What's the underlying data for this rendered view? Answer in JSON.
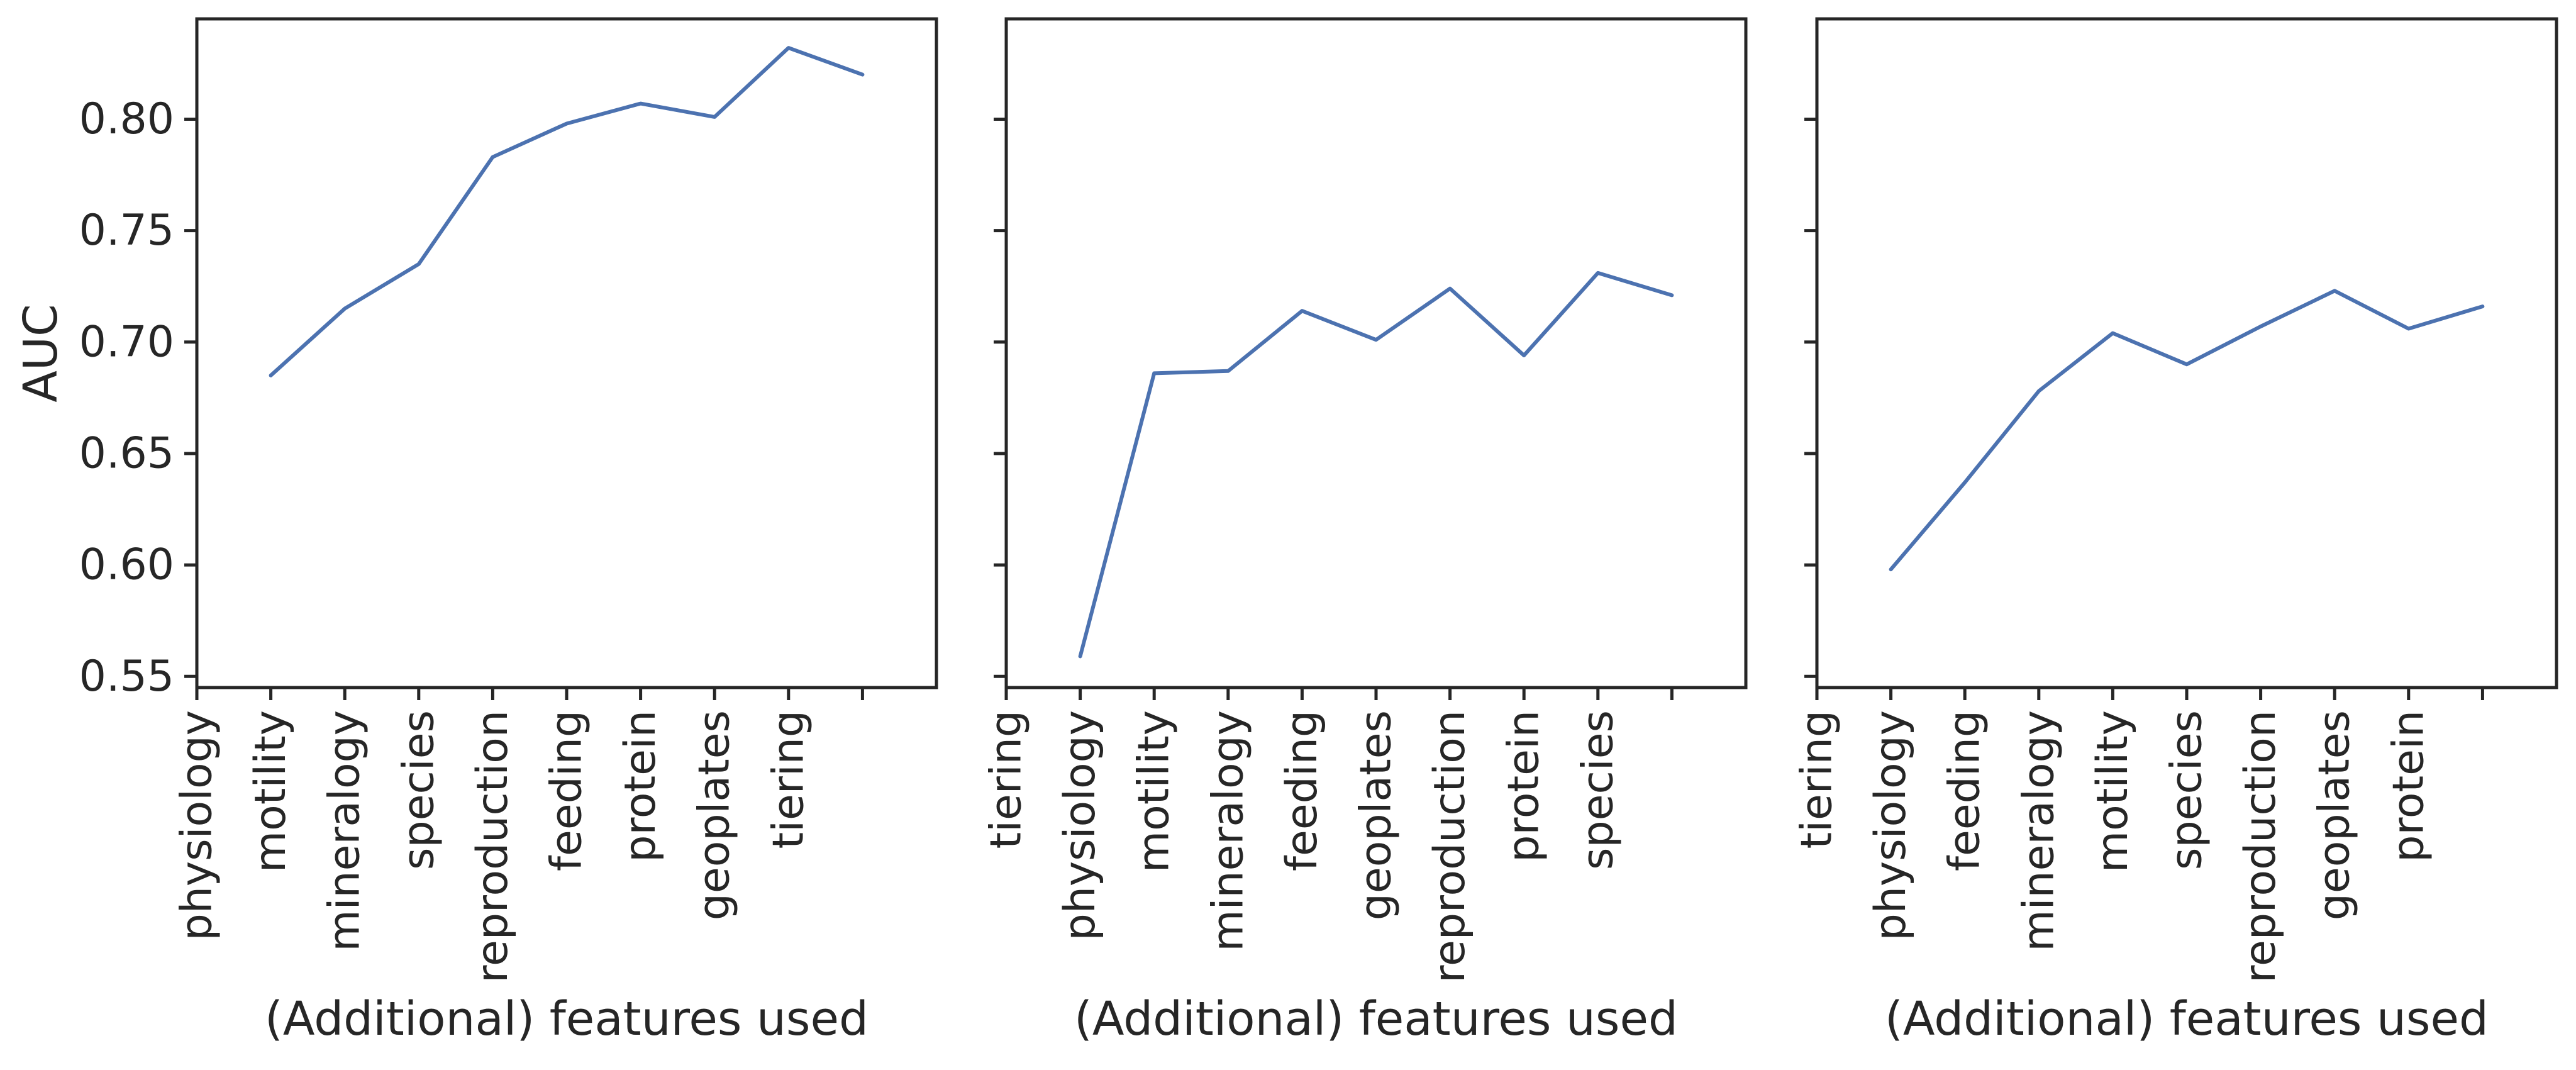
{
  "shared_ylabel": "AUC",
  "y_ticks": [
    "0.55",
    "0.60",
    "0.65",
    "0.70",
    "0.75",
    "0.80"
  ],
  "colors": {
    "line": "#4c72b0",
    "axis": "#262626",
    "background": "#ffffff"
  },
  "chart_data": [
    {
      "type": "line",
      "xlabel": "(Additional) features used",
      "ylabel": "AUC",
      "categories": [
        "physiology",
        "motility",
        "mineralogy",
        "species",
        "reproduction",
        "feeding",
        "protein",
        "geoplates",
        "tiering",
        ""
      ],
      "x": [
        1,
        2,
        3,
        4,
        5,
        6,
        7,
        8,
        9
      ],
      "values": [
        0.685,
        0.715,
        0.735,
        0.783,
        0.798,
        0.807,
        0.801,
        0.832,
        0.82
      ],
      "ylim": [
        0.545,
        0.845
      ],
      "grid": false
    },
    {
      "type": "line",
      "xlabel": "(Additional) features used",
      "ylabel": "",
      "categories": [
        "tiering",
        "physiology",
        "motility",
        "mineralogy",
        "feeding",
        "geoplates",
        "reproduction",
        "protein",
        "species",
        ""
      ],
      "x": [
        1,
        2,
        3,
        4,
        5,
        6,
        7,
        8,
        9
      ],
      "values": [
        0.559,
        0.686,
        0.687,
        0.714,
        0.701,
        0.724,
        0.694,
        0.731,
        0.721
      ],
      "ylim": [
        0.545,
        0.845
      ],
      "grid": false
    },
    {
      "type": "line",
      "xlabel": "(Additional) features used",
      "ylabel": "",
      "categories": [
        "tiering",
        "physiology",
        "feeding",
        "mineralogy",
        "motility",
        "species",
        "reproduction",
        "geoplates",
        "protein",
        ""
      ],
      "x": [
        1,
        2,
        3,
        4,
        5,
        6,
        7,
        8,
        9
      ],
      "values": [
        0.598,
        0.637,
        0.678,
        0.704,
        0.69,
        0.707,
        0.723,
        0.706,
        0.716
      ],
      "ylim": [
        0.545,
        0.845
      ],
      "grid": false
    }
  ]
}
